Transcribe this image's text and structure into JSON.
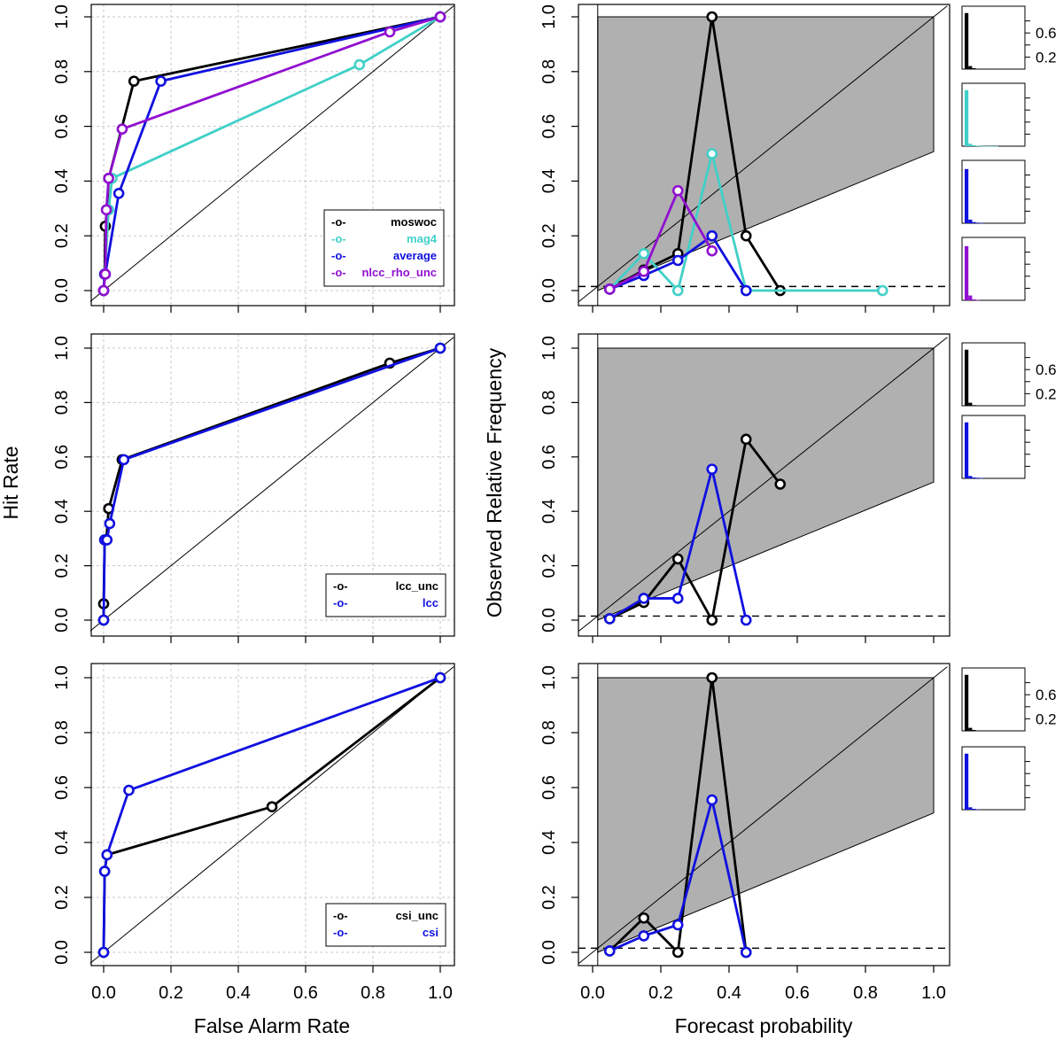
{
  "colors": {
    "moswoc": "#000000",
    "mag4": "#40d0c8",
    "average": "#1010e0",
    "nlcc_rho_unc": "#9010d0",
    "lcc_unc": "#000000",
    "lcc": "#1010e0",
    "csi_unc": "#000000",
    "csi": "#1010e0",
    "shade": "#b0b0b0",
    "grid": "#c8c8c8"
  },
  "chart_data": [
    {
      "type": "line",
      "panel": "roc-1",
      "xlabel": "",
      "ylabel": "",
      "xlim": [
        0,
        1
      ],
      "ylim": [
        0,
        1
      ],
      "grid": true,
      "legend_position": "bottom-right",
      "legend_marker": "-o-",
      "xticks": [],
      "yticks": [
        "0.0",
        "0.2",
        "0.4",
        "0.6",
        "0.8",
        "1.0"
      ],
      "series": [
        {
          "name": "moswoc",
          "color_key": "moswoc",
          "x": [
            0.0,
            0.003,
            0.005,
            0.01,
            0.015,
            0.09,
            1.0
          ],
          "y": [
            0.0,
            0.06,
            0.235,
            0.295,
            0.41,
            0.765,
            1.0
          ]
        },
        {
          "name": "mag4",
          "color_key": "mag4",
          "x": [
            0.0,
            0.003,
            0.015,
            0.025,
            0.76,
            1.0
          ],
          "y": [
            0.0,
            0.06,
            0.295,
            0.41,
            0.825,
            1.0
          ]
        },
        {
          "name": "average",
          "color_key": "average",
          "x": [
            0.0,
            0.003,
            0.005,
            0.045,
            0.17,
            1.0
          ],
          "y": [
            0.0,
            0.06,
            0.06,
            0.355,
            0.765,
            1.0
          ]
        },
        {
          "name": "nlcc_rho_unc",
          "color_key": "nlcc_rho_unc",
          "x": [
            0.0,
            0.005,
            0.008,
            0.015,
            0.055,
            0.85,
            1.0
          ],
          "y": [
            0.0,
            0.06,
            0.295,
            0.41,
            0.59,
            0.945,
            1.0
          ]
        }
      ]
    },
    {
      "type": "line",
      "panel": "reliability-1",
      "xlabel": "",
      "ylabel": "",
      "xlim": [
        0,
        1
      ],
      "ylim": [
        0,
        1
      ],
      "xticks": [],
      "yticks": [
        "0.0",
        "0.2",
        "0.4",
        "0.6",
        "0.8",
        "1.0"
      ],
      "series": [
        {
          "color_key": "moswoc",
          "x": [
            0.05,
            0.15,
            0.25,
            0.35,
            0.45,
            0.55
          ],
          "y": [
            0.005,
            0.075,
            0.135,
            1.0,
            0.2,
            0.0
          ]
        },
        {
          "color_key": "mag4",
          "x": [
            0.05,
            0.15,
            0.25,
            0.35,
            0.45,
            0.85
          ],
          "y": [
            0.005,
            0.135,
            0.0,
            0.5,
            0.0,
            0.0
          ]
        },
        {
          "color_key": "average",
          "x": [
            0.05,
            0.15,
            0.25,
            0.35,
            0.45
          ],
          "y": [
            0.005,
            0.055,
            0.11,
            0.2,
            0.0
          ]
        },
        {
          "color_key": "nlcc_rho_unc",
          "x": [
            0.05,
            0.15,
            0.25,
            0.35
          ],
          "y": [
            0.005,
            0.07,
            0.365,
            0.145
          ]
        }
      ],
      "histograms": [
        {
          "color_key": "moswoc",
          "values": [
            0.93,
            0.05,
            0.015,
            0.005,
            0.003,
            0.002
          ],
          "ticks": [
            "0.6",
            "0.2"
          ]
        },
        {
          "color_key": "mag4",
          "values": [
            0.93,
            0.04,
            0.015,
            0.007,
            0.004,
            0.002,
            0.001,
            0.001,
            0.001
          ],
          "ticks": []
        },
        {
          "color_key": "average",
          "values": [
            0.9,
            0.06,
            0.02,
            0.01,
            0.005
          ],
          "ticks": []
        },
        {
          "color_key": "nlcc_rho_unc",
          "values": [
            0.9,
            0.08,
            0.015,
            0.005
          ],
          "ticks": []
        }
      ]
    },
    {
      "type": "line",
      "panel": "roc-2",
      "xlabel": "",
      "ylabel": "",
      "xlim": [
        0,
        1
      ],
      "ylim": [
        0,
        1
      ],
      "grid": true,
      "legend_position": "bottom-right",
      "legend_marker": "-o-",
      "xticks": [],
      "yticks": [
        "0.0",
        "0.2",
        "0.4",
        "0.6",
        "0.8",
        "1.0"
      ],
      "series": [
        {
          "name": "lcc_unc",
          "color_key": "lcc_unc",
          "x": [
            0.0,
            0.0,
            0.003,
            0.008,
            0.015,
            0.055,
            0.85,
            1.0
          ],
          "y": [
            0.0,
            0.06,
            0.295,
            0.295,
            0.41,
            0.59,
            0.945,
            1.0
          ]
        },
        {
          "name": "lcc",
          "color_key": "lcc",
          "x": [
            0.0,
            0.003,
            0.01,
            0.018,
            0.06,
            1.0
          ],
          "y": [
            0.0,
            0.295,
            0.295,
            0.355,
            0.59,
            1.0
          ]
        }
      ]
    },
    {
      "type": "line",
      "panel": "reliability-2",
      "xlabel": "",
      "ylabel": "Observed Relative Frequency",
      "xlim": [
        0,
        1
      ],
      "ylim": [
        0,
        1
      ],
      "xticks": [],
      "yticks": [
        "0.0",
        "0.2",
        "0.4",
        "0.6",
        "0.8",
        "1.0"
      ],
      "series": [
        {
          "color_key": "lcc_unc",
          "x": [
            0.05,
            0.15,
            0.25,
            0.35,
            0.45,
            0.55
          ],
          "y": [
            0.005,
            0.065,
            0.225,
            0.0,
            0.665,
            0.5
          ]
        },
        {
          "color_key": "lcc",
          "x": [
            0.05,
            0.15,
            0.25,
            0.35,
            0.45
          ],
          "y": [
            0.005,
            0.08,
            0.08,
            0.555,
            0.0
          ]
        }
      ],
      "histograms": [
        {
          "color_key": "lcc_unc",
          "values": [
            0.93,
            0.05,
            0.01,
            0.005,
            0.003,
            0.002
          ],
          "ticks": [
            "0.6",
            "0.2"
          ]
        },
        {
          "color_key": "lcc",
          "values": [
            0.93,
            0.04,
            0.015,
            0.01,
            0.005
          ],
          "ticks": []
        }
      ]
    },
    {
      "type": "line",
      "panel": "roc-3",
      "xlabel": "False Alarm Rate",
      "ylabel": "",
      "xlim": [
        0,
        1
      ],
      "ylim": [
        0,
        1
      ],
      "grid": true,
      "legend_position": "bottom-right",
      "legend_marker": "-o-",
      "xticks": [
        "0.0",
        "0.2",
        "0.4",
        "0.6",
        "0.8",
        "1.0"
      ],
      "yticks": [
        "0.0",
        "0.2",
        "0.4",
        "0.6",
        "0.8",
        "1.0"
      ],
      "series": [
        {
          "name": "csi_unc",
          "color_key": "csi_unc",
          "x": [
            0.0,
            0.003,
            0.01,
            0.5,
            1.0
          ],
          "y": [
            0.0,
            0.295,
            0.355,
            0.53,
            1.0
          ]
        },
        {
          "name": "csi",
          "color_key": "csi",
          "x": [
            0.0,
            0.003,
            0.01,
            0.075,
            1.0
          ],
          "y": [
            0.0,
            0.295,
            0.355,
            0.59,
            1.0
          ]
        }
      ]
    },
    {
      "type": "line",
      "panel": "reliability-3",
      "xlabel": "Forecast probability",
      "ylabel": "",
      "xlim": [
        0,
        1
      ],
      "ylim": [
        0,
        1
      ],
      "xticks": [
        "0.0",
        "0.2",
        "0.4",
        "0.6",
        "0.8",
        "1.0"
      ],
      "yticks": [
        "0.0",
        "0.2",
        "0.4",
        "0.6",
        "0.8",
        "1.0"
      ],
      "series": [
        {
          "color_key": "csi_unc",
          "x": [
            0.05,
            0.15,
            0.25,
            0.35,
            0.45
          ],
          "y": [
            0.005,
            0.125,
            0.0,
            1.0,
            0.0
          ]
        },
        {
          "color_key": "csi",
          "x": [
            0.05,
            0.15,
            0.25,
            0.35,
            0.45
          ],
          "y": [
            0.005,
            0.06,
            0.1,
            0.555,
            0.0
          ]
        }
      ],
      "histograms": [
        {
          "color_key": "csi_unc",
          "values": [
            0.93,
            0.05,
            0.015,
            0.005
          ],
          "ticks": [
            "0.6",
            "0.2"
          ]
        },
        {
          "color_key": "csi",
          "values": [
            0.93,
            0.04,
            0.015,
            0.005
          ],
          "ticks": []
        }
      ]
    }
  ],
  "labels": {
    "hit_rate": "Hit Rate",
    "observed_relative_frequency": "Observed Relative Frequency",
    "false_alarm_rate": "False Alarm Rate",
    "forecast_probability": "Forecast probability"
  }
}
